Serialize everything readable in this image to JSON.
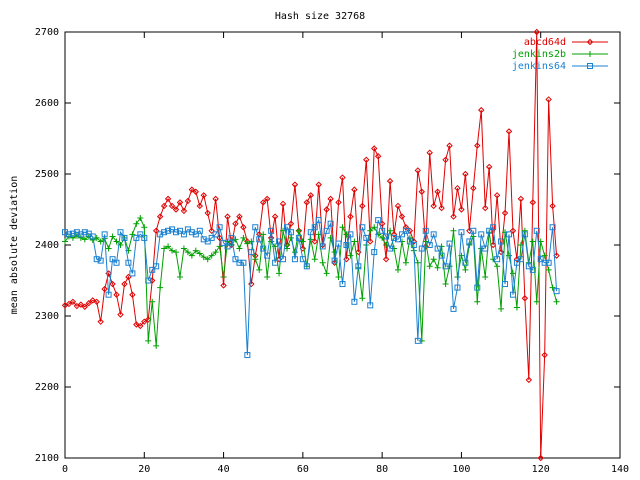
{
  "chart_data": {
    "type": "line",
    "title": "Hash size 32768",
    "y_label": "mean absolute deviation",
    "xlim": [
      0,
      140
    ],
    "xticks": [
      0,
      20,
      40,
      60,
      80,
      100,
      120,
      140
    ],
    "ylim": [
      2100,
      2700
    ],
    "yticks": [
      2100,
      2200,
      2300,
      2400,
      2500,
      2600,
      2700
    ],
    "legend": "top-right",
    "x": [
      0,
      1,
      2,
      3,
      4,
      5,
      6,
      7,
      8,
      9,
      10,
      11,
      12,
      13,
      14,
      15,
      16,
      17,
      18,
      19,
      20,
      21,
      22,
      23,
      24,
      25,
      26,
      27,
      28,
      29,
      30,
      31,
      32,
      33,
      34,
      35,
      36,
      37,
      38,
      39,
      40,
      41,
      42,
      43,
      44,
      45,
      46,
      47,
      48,
      49,
      50,
      51,
      52,
      53,
      54,
      55,
      56,
      57,
      58,
      59,
      60,
      61,
      62,
      63,
      64,
      65,
      66,
      67,
      68,
      69,
      70,
      71,
      72,
      73,
      74,
      75,
      76,
      77,
      78,
      79,
      80,
      81,
      82,
      83,
      84,
      85,
      86,
      87,
      88,
      89,
      90,
      91,
      92,
      93,
      94,
      95,
      96,
      97,
      98,
      99,
      100,
      101,
      102,
      103,
      104,
      105,
      106,
      107,
      108,
      109,
      110,
      111,
      112,
      113,
      114,
      115,
      116,
      117,
      118,
      119,
      120,
      121,
      122,
      123,
      124
    ],
    "series": [
      {
        "name": "abcd64d",
        "color": "#e00000",
        "marker": "diamond",
        "values": [
          2315,
          2317,
          2320,
          2314,
          2316,
          2313,
          2318,
          2322,
          2320,
          2292,
          2338,
          2360,
          2345,
          2330,
          2302,
          2345,
          2355,
          2330,
          2288,
          2286,
          2292,
          2295,
          2350,
          2420,
          2440,
          2455,
          2465,
          2455,
          2450,
          2460,
          2448,
          2462,
          2478,
          2475,
          2455,
          2470,
          2445,
          2420,
          2465,
          2410,
          2343,
          2440,
          2400,
          2430,
          2440,
          2425,
          2405,
          2345,
          2385,
          2415,
          2460,
          2465,
          2410,
          2440,
          2380,
          2458,
          2400,
          2430,
          2485,
          2420,
          2395,
          2460,
          2470,
          2405,
          2485,
          2400,
          2450,
          2465,
          2375,
          2460,
          2495,
          2380,
          2440,
          2478,
          2390,
          2455,
          2520,
          2405,
          2536,
          2525,
          2430,
          2380,
          2490,
          2415,
          2455,
          2440,
          2425,
          2420,
          2405,
          2505,
          2475,
          2398,
          2530,
          2455,
          2475,
          2452,
          2520,
          2540,
          2440,
          2480,
          2450,
          2500,
          2420,
          2480,
          2540,
          2590,
          2452,
          2510,
          2400,
          2470,
          2390,
          2445,
          2560,
          2420,
          2380,
          2465,
          2325,
          2210,
          2460,
          2700,
          2100,
          2245,
          2605,
          2455,
          2385
        ]
      },
      {
        "name": "jenkins2b",
        "color": "#00a000",
        "marker": "plus",
        "values": [
          2405,
          2412,
          2410,
          2413,
          2410,
          2408,
          2412,
          2407,
          2410,
          2405,
          2409,
          2395,
          2412,
          2405,
          2400,
          2410,
          2392,
          2415,
          2430,
          2438,
          2425,
          2265,
          2320,
          2258,
          2340,
          2395,
          2398,
          2392,
          2390,
          2355,
          2395,
          2390,
          2385,
          2392,
          2388,
          2383,
          2380,
          2385,
          2390,
          2398,
          2355,
          2405,
          2400,
          2408,
          2395,
          2410,
          2402,
          2405,
          2380,
          2365,
          2415,
          2355,
          2405,
          2398,
          2360,
          2420,
          2395,
          2410,
          2390,
          2420,
          2405,
          2370,
          2408,
          2380,
          2415,
          2375,
          2360,
          2410,
          2390,
          2355,
          2425,
          2415,
          2385,
          2405,
          2368,
          2325,
          2400,
          2420,
          2425,
          2415,
          2410,
          2400,
          2420,
          2395,
          2365,
          2405,
          2375,
          2410,
          2392,
          2375,
          2265,
          2405,
          2370,
          2380,
          2368,
          2398,
          2345,
          2370,
          2420,
          2355,
          2385,
          2365,
          2400,
          2412,
          2320,
          2395,
          2355,
          2418,
          2380,
          2370,
          2310,
          2418,
          2385,
          2360,
          2312,
          2400,
          2420,
          2375,
          2405,
          2320,
          2405,
          2385,
          2365,
          2340,
          2320
        ]
      },
      {
        "name": "jenkins64",
        "color": "#1a80d0",
        "marker": "square",
        "values": [
          2418,
          2415,
          2416,
          2418,
          2415,
          2418,
          2416,
          2412,
          2380,
          2378,
          2415,
          2330,
          2380,
          2375,
          2418,
          2410,
          2375,
          2360,
          2410,
          2415,
          2410,
          2350,
          2365,
          2370,
          2415,
          2418,
          2420,
          2422,
          2418,
          2420,
          2415,
          2422,
          2418,
          2415,
          2420,
          2408,
          2405,
          2410,
          2415,
          2425,
          2403,
          2398,
          2410,
          2380,
          2375,
          2375,
          2245,
          2390,
          2425,
          2408,
          2395,
          2385,
          2420,
          2375,
          2405,
          2380,
          2425,
          2418,
          2380,
          2410,
          2380,
          2370,
          2418,
          2425,
          2435,
          2398,
          2420,
          2430,
          2378,
          2402,
          2345,
          2400,
          2415,
          2320,
          2370,
          2425,
          2410,
          2315,
          2390,
          2435,
          2420,
          2412,
          2395,
          2410,
          2408,
          2415,
          2420,
          2405,
          2400,
          2265,
          2395,
          2420,
          2400,
          2415,
          2395,
          2385,
          2370,
          2402,
          2310,
          2340,
          2418,
          2375,
          2405,
          2420,
          2340,
          2415,
          2395,
          2420,
          2425,
          2380,
          2405,
          2345,
          2415,
          2330,
          2375,
          2380,
          2415,
          2370,
          2365,
          2420,
          2380,
          2375,
          2375,
          2425,
          2335
        ]
      }
    ]
  }
}
